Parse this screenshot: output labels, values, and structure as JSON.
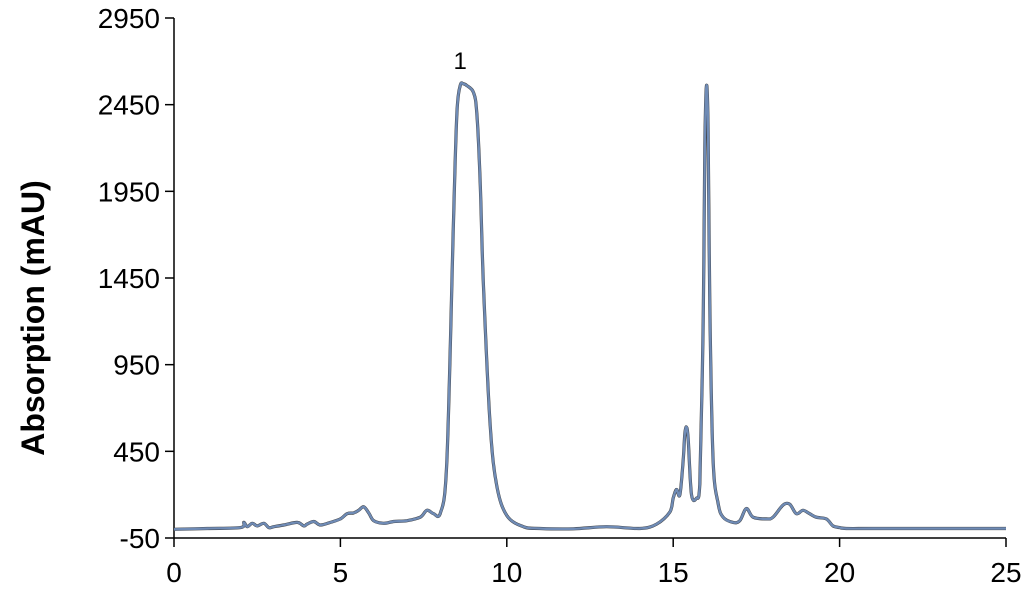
{
  "chart_data": {
    "type": "line",
    "title": "",
    "xlabel": "",
    "ylabel": "Absorption (mAU)",
    "xlim": [
      0,
      25
    ],
    "ylim": [
      -50,
      2950
    ],
    "x_ticks": [
      "0",
      "5",
      "10",
      "15",
      "20",
      "25"
    ],
    "y_ticks": [
      "-50",
      "450",
      "950",
      "1450",
      "1950",
      "2450",
      "2950"
    ],
    "grid": false,
    "legend": "none",
    "annotations": [
      {
        "text": "1",
        "x": 8.6,
        "y": 2610
      }
    ],
    "series": [
      {
        "color": "#6f8bb5",
        "x": [
          0,
          1.0,
          2.0,
          2.1,
          2.2,
          2.35,
          2.5,
          2.7,
          2.85,
          3.0,
          3.3,
          3.7,
          3.9,
          4.0,
          4.2,
          4.4,
          4.7,
          5.0,
          5.2,
          5.4,
          5.55,
          5.7,
          5.85,
          6.0,
          6.3,
          6.6,
          7.0,
          7.4,
          7.6,
          7.8,
          8.0,
          8.2,
          8.4,
          8.5,
          8.6,
          8.7,
          8.8,
          9.0,
          9.1,
          9.2,
          9.3,
          9.5,
          9.7,
          10.0,
          10.5,
          11.0,
          12.0,
          13.0,
          14.0,
          14.5,
          14.9,
          15.0,
          15.1,
          15.2,
          15.3,
          15.35,
          15.4,
          15.45,
          15.55,
          15.7,
          15.8,
          15.9,
          15.95,
          16.0,
          16.05,
          16.1,
          16.2,
          16.35,
          16.5,
          16.8,
          17.0,
          17.2,
          17.4,
          17.8,
          18.0,
          18.3,
          18.5,
          18.7,
          18.9,
          19.1,
          19.3,
          19.6,
          19.8,
          20.0,
          20.2,
          21.0,
          23.0,
          25.0
        ],
        "y": [
          0,
          5,
          10,
          40,
          15,
          35,
          20,
          35,
          10,
          15,
          25,
          40,
          20,
          30,
          45,
          25,
          40,
          60,
          90,
          95,
          110,
          130,
          95,
          50,
          35,
          45,
          50,
          70,
          110,
          90,
          90,
          400,
          1800,
          2400,
          2560,
          2570,
          2560,
          2520,
          2400,
          2000,
          1400,
          600,
          250,
          80,
          15,
          5,
          3,
          15,
          5,
          30,
          100,
          180,
          230,
          200,
          400,
          550,
          590,
          520,
          200,
          180,
          260,
          1200,
          2200,
          2560,
          2300,
          1300,
          400,
          150,
          70,
          40,
          50,
          120,
          70,
          60,
          70,
          140,
          145,
          90,
          110,
          90,
          70,
          60,
          20,
          10,
          5,
          5,
          5,
          5
        ]
      }
    ]
  }
}
